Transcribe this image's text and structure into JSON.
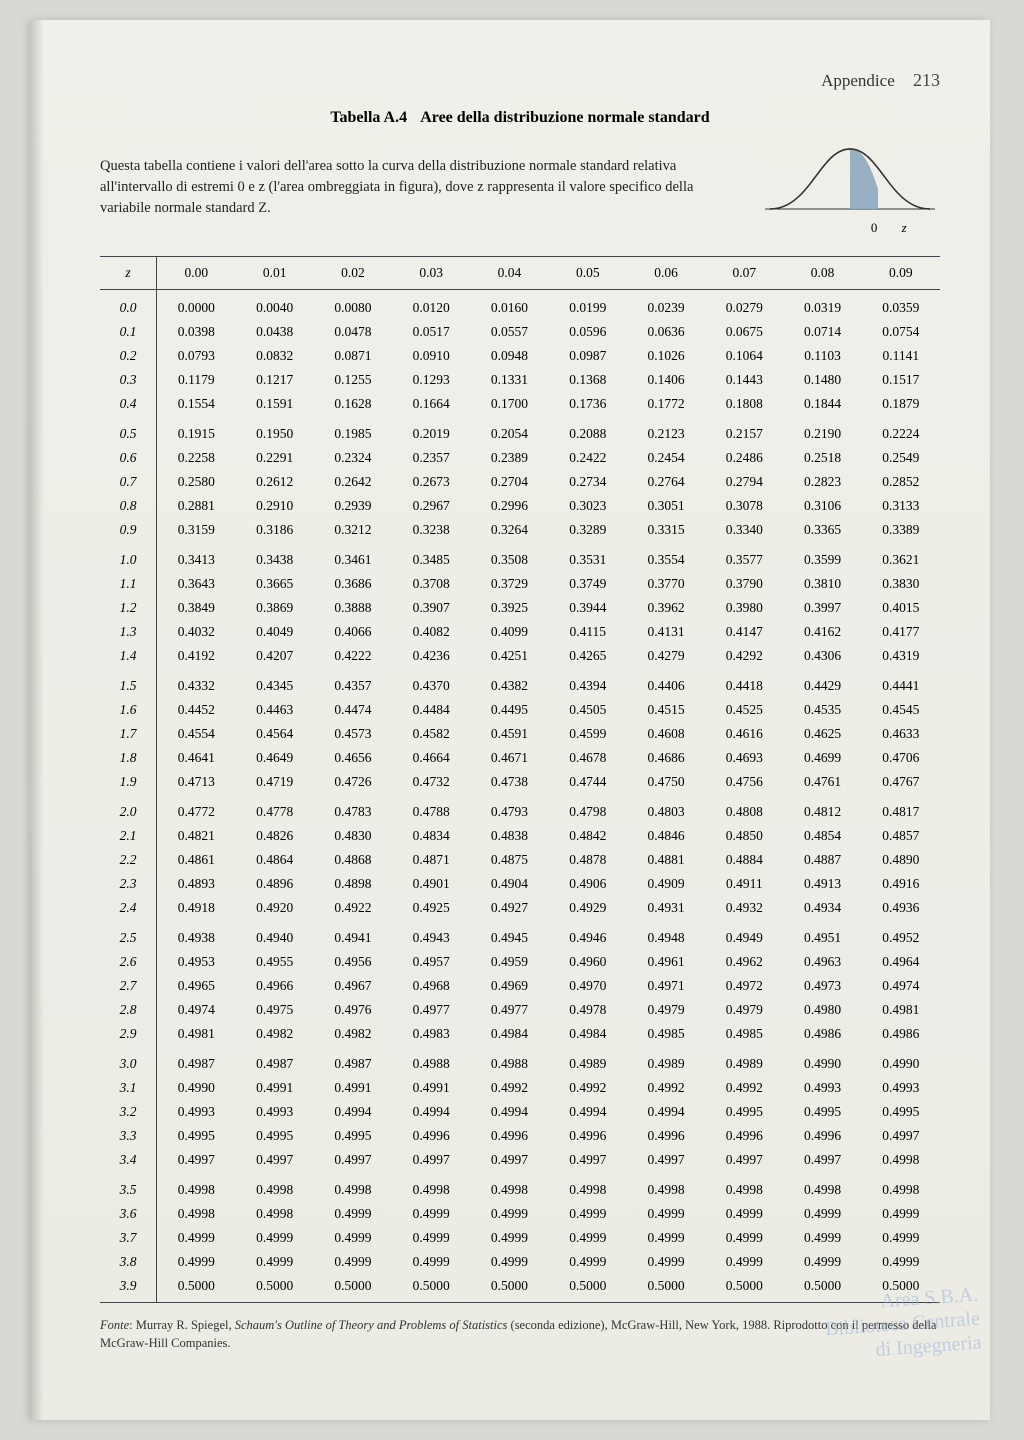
{
  "header": {
    "appendix": "Appendice",
    "page": "213"
  },
  "title": {
    "num": "Tabella A.4",
    "text": "Aree della distribuzione normale standard"
  },
  "intro": "Questa tabella contiene i valori dell'area sotto la curva della distribuzione normale standard relativa all'intervallo di estremi 0 e z (l'area ombreggiata in figura), dove z rappresenta il valore specifico della variabile normale standard Z.",
  "curve": {
    "zero": "0",
    "z": "z",
    "stroke": "#333333",
    "fill": "#8ea8bf"
  },
  "table": {
    "z_label": "z",
    "col_headers": [
      "0.00",
      "0.01",
      "0.02",
      "0.03",
      "0.04",
      "0.05",
      "0.06",
      "0.07",
      "0.08",
      "0.09"
    ],
    "groups": [
      [
        {
          "z": "0.0",
          "v": [
            "0.0000",
            "0.0040",
            "0.0080",
            "0.0120",
            "0.0160",
            "0.0199",
            "0.0239",
            "0.0279",
            "0.0319",
            "0.0359"
          ]
        },
        {
          "z": "0.1",
          "v": [
            "0.0398",
            "0.0438",
            "0.0478",
            "0.0517",
            "0.0557",
            "0.0596",
            "0.0636",
            "0.0675",
            "0.0714",
            "0.0754"
          ]
        },
        {
          "z": "0.2",
          "v": [
            "0.0793",
            "0.0832",
            "0.0871",
            "0.0910",
            "0.0948",
            "0.0987",
            "0.1026",
            "0.1064",
            "0.1103",
            "0.1141"
          ]
        },
        {
          "z": "0.3",
          "v": [
            "0.1179",
            "0.1217",
            "0.1255",
            "0.1293",
            "0.1331",
            "0.1368",
            "0.1406",
            "0.1443",
            "0.1480",
            "0.1517"
          ]
        },
        {
          "z": "0.4",
          "v": [
            "0.1554",
            "0.1591",
            "0.1628",
            "0.1664",
            "0.1700",
            "0.1736",
            "0.1772",
            "0.1808",
            "0.1844",
            "0.1879"
          ]
        }
      ],
      [
        {
          "z": "0.5",
          "v": [
            "0.1915",
            "0.1950",
            "0.1985",
            "0.2019",
            "0.2054",
            "0.2088",
            "0.2123",
            "0.2157",
            "0.2190",
            "0.2224"
          ]
        },
        {
          "z": "0.6",
          "v": [
            "0.2258",
            "0.2291",
            "0.2324",
            "0.2357",
            "0.2389",
            "0.2422",
            "0.2454",
            "0.2486",
            "0.2518",
            "0.2549"
          ]
        },
        {
          "z": "0.7",
          "v": [
            "0.2580",
            "0.2612",
            "0.2642",
            "0.2673",
            "0.2704",
            "0.2734",
            "0.2764",
            "0.2794",
            "0.2823",
            "0.2852"
          ]
        },
        {
          "z": "0.8",
          "v": [
            "0.2881",
            "0.2910",
            "0.2939",
            "0.2967",
            "0.2996",
            "0.3023",
            "0.3051",
            "0.3078",
            "0.3106",
            "0.3133"
          ]
        },
        {
          "z": "0.9",
          "v": [
            "0.3159",
            "0.3186",
            "0.3212",
            "0.3238",
            "0.3264",
            "0.3289",
            "0.3315",
            "0.3340",
            "0.3365",
            "0.3389"
          ]
        }
      ],
      [
        {
          "z": "1.0",
          "v": [
            "0.3413",
            "0.3438",
            "0.3461",
            "0.3485",
            "0.3508",
            "0.3531",
            "0.3554",
            "0.3577",
            "0.3599",
            "0.3621"
          ]
        },
        {
          "z": "1.1",
          "v": [
            "0.3643",
            "0.3665",
            "0.3686",
            "0.3708",
            "0.3729",
            "0.3749",
            "0.3770",
            "0.3790",
            "0.3810",
            "0.3830"
          ]
        },
        {
          "z": "1.2",
          "v": [
            "0.3849",
            "0.3869",
            "0.3888",
            "0.3907",
            "0.3925",
            "0.3944",
            "0.3962",
            "0.3980",
            "0.3997",
            "0.4015"
          ]
        },
        {
          "z": "1.3",
          "v": [
            "0.4032",
            "0.4049",
            "0.4066",
            "0.4082",
            "0.4099",
            "0.4115",
            "0.4131",
            "0.4147",
            "0.4162",
            "0.4177"
          ]
        },
        {
          "z": "1.4",
          "v": [
            "0.4192",
            "0.4207",
            "0.4222",
            "0.4236",
            "0.4251",
            "0.4265",
            "0.4279",
            "0.4292",
            "0.4306",
            "0.4319"
          ]
        }
      ],
      [
        {
          "z": "1.5",
          "v": [
            "0.4332",
            "0.4345",
            "0.4357",
            "0.4370",
            "0.4382",
            "0.4394",
            "0.4406",
            "0.4418",
            "0.4429",
            "0.4441"
          ]
        },
        {
          "z": "1.6",
          "v": [
            "0.4452",
            "0.4463",
            "0.4474",
            "0.4484",
            "0.4495",
            "0.4505",
            "0.4515",
            "0.4525",
            "0.4535",
            "0.4545"
          ]
        },
        {
          "z": "1.7",
          "v": [
            "0.4554",
            "0.4564",
            "0.4573",
            "0.4582",
            "0.4591",
            "0.4599",
            "0.4608",
            "0.4616",
            "0.4625",
            "0.4633"
          ]
        },
        {
          "z": "1.8",
          "v": [
            "0.4641",
            "0.4649",
            "0.4656",
            "0.4664",
            "0.4671",
            "0.4678",
            "0.4686",
            "0.4693",
            "0.4699",
            "0.4706"
          ]
        },
        {
          "z": "1.9",
          "v": [
            "0.4713",
            "0.4719",
            "0.4726",
            "0.4732",
            "0.4738",
            "0.4744",
            "0.4750",
            "0.4756",
            "0.4761",
            "0.4767"
          ]
        }
      ],
      [
        {
          "z": "2.0",
          "v": [
            "0.4772",
            "0.4778",
            "0.4783",
            "0.4788",
            "0.4793",
            "0.4798",
            "0.4803",
            "0.4808",
            "0.4812",
            "0.4817"
          ]
        },
        {
          "z": "2.1",
          "v": [
            "0.4821",
            "0.4826",
            "0.4830",
            "0.4834",
            "0.4838",
            "0.4842",
            "0.4846",
            "0.4850",
            "0.4854",
            "0.4857"
          ]
        },
        {
          "z": "2.2",
          "v": [
            "0.4861",
            "0.4864",
            "0.4868",
            "0.4871",
            "0.4875",
            "0.4878",
            "0.4881",
            "0.4884",
            "0.4887",
            "0.4890"
          ]
        },
        {
          "z": "2.3",
          "v": [
            "0.4893",
            "0.4896",
            "0.4898",
            "0.4901",
            "0.4904",
            "0.4906",
            "0.4909",
            "0.4911",
            "0.4913",
            "0.4916"
          ]
        },
        {
          "z": "2.4",
          "v": [
            "0.4918",
            "0.4920",
            "0.4922",
            "0.4925",
            "0.4927",
            "0.4929",
            "0.4931",
            "0.4932",
            "0.4934",
            "0.4936"
          ]
        }
      ],
      [
        {
          "z": "2.5",
          "v": [
            "0.4938",
            "0.4940",
            "0.4941",
            "0.4943",
            "0.4945",
            "0.4946",
            "0.4948",
            "0.4949",
            "0.4951",
            "0.4952"
          ]
        },
        {
          "z": "2.6",
          "v": [
            "0.4953",
            "0.4955",
            "0.4956",
            "0.4957",
            "0.4959",
            "0.4960",
            "0.4961",
            "0.4962",
            "0.4963",
            "0.4964"
          ]
        },
        {
          "z": "2.7",
          "v": [
            "0.4965",
            "0.4966",
            "0.4967",
            "0.4968",
            "0.4969",
            "0.4970",
            "0.4971",
            "0.4972",
            "0.4973",
            "0.4974"
          ]
        },
        {
          "z": "2.8",
          "v": [
            "0.4974",
            "0.4975",
            "0.4976",
            "0.4977",
            "0.4977",
            "0.4978",
            "0.4979",
            "0.4979",
            "0.4980",
            "0.4981"
          ]
        },
        {
          "z": "2.9",
          "v": [
            "0.4981",
            "0.4982",
            "0.4982",
            "0.4983",
            "0.4984",
            "0.4984",
            "0.4985",
            "0.4985",
            "0.4986",
            "0.4986"
          ]
        }
      ],
      [
        {
          "z": "3.0",
          "v": [
            "0.4987",
            "0.4987",
            "0.4987",
            "0.4988",
            "0.4988",
            "0.4989",
            "0.4989",
            "0.4989",
            "0.4990",
            "0.4990"
          ]
        },
        {
          "z": "3.1",
          "v": [
            "0.4990",
            "0.4991",
            "0.4991",
            "0.4991",
            "0.4992",
            "0.4992",
            "0.4992",
            "0.4992",
            "0.4993",
            "0.4993"
          ]
        },
        {
          "z": "3.2",
          "v": [
            "0.4993",
            "0.4993",
            "0.4994",
            "0.4994",
            "0.4994",
            "0.4994",
            "0.4994",
            "0.4995",
            "0.4995",
            "0.4995"
          ]
        },
        {
          "z": "3.3",
          "v": [
            "0.4995",
            "0.4995",
            "0.4995",
            "0.4996",
            "0.4996",
            "0.4996",
            "0.4996",
            "0.4996",
            "0.4996",
            "0.4997"
          ]
        },
        {
          "z": "3.4",
          "v": [
            "0.4997",
            "0.4997",
            "0.4997",
            "0.4997",
            "0.4997",
            "0.4997",
            "0.4997",
            "0.4997",
            "0.4997",
            "0.4998"
          ]
        }
      ],
      [
        {
          "z": "3.5",
          "v": [
            "0.4998",
            "0.4998",
            "0.4998",
            "0.4998",
            "0.4998",
            "0.4998",
            "0.4998",
            "0.4998",
            "0.4998",
            "0.4998"
          ]
        },
        {
          "z": "3.6",
          "v": [
            "0.4998",
            "0.4998",
            "0.4999",
            "0.4999",
            "0.4999",
            "0.4999",
            "0.4999",
            "0.4999",
            "0.4999",
            "0.4999"
          ]
        },
        {
          "z": "3.7",
          "v": [
            "0.4999",
            "0.4999",
            "0.4999",
            "0.4999",
            "0.4999",
            "0.4999",
            "0.4999",
            "0.4999",
            "0.4999",
            "0.4999"
          ]
        },
        {
          "z": "3.8",
          "v": [
            "0.4999",
            "0.4999",
            "0.4999",
            "0.4999",
            "0.4999",
            "0.4999",
            "0.4999",
            "0.4999",
            "0.4999",
            "0.4999"
          ]
        },
        {
          "z": "3.9",
          "v": [
            "0.5000",
            "0.5000",
            "0.5000",
            "0.5000",
            "0.5000",
            "0.5000",
            "0.5000",
            "0.5000",
            "0.5000",
            "0.5000"
          ]
        }
      ]
    ]
  },
  "fonte": {
    "label": "Fonte",
    "text": ": Murray R. Spiegel, ",
    "book": "Schaum's Outline of Theory and Problems of Statistics",
    "tail": " (seconda edizione), McGraw-Hill, New York, 1988. Riprodotto con il permesso della McGraw-Hill Companies."
  },
  "stamp": {
    "l1": "Area S.B.A.",
    "l2": "Biblioteca Centrale",
    "l3": "di Ingegneria"
  }
}
